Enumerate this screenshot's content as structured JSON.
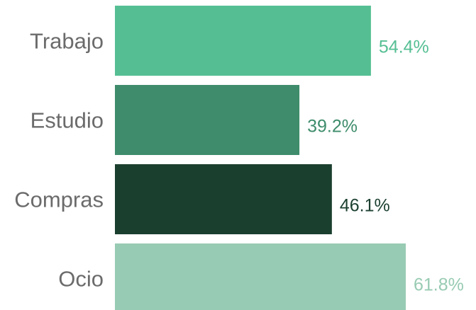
{
  "chart_data": {
    "type": "bar",
    "orientation": "horizontal",
    "categories": [
      "Trabajo",
      "Estudio",
      "Compras",
      "Ocio"
    ],
    "values": [
      54.4,
      39.2,
      46.1,
      61.8
    ],
    "value_labels": [
      "54.4%",
      "39.2%",
      "46.1%",
      "61.8%"
    ],
    "colors": [
      "#55bf93",
      "#3e8c6b",
      "#1b3f2f",
      "#98cbb3"
    ],
    "label_colors": [
      "#55bf93",
      "#3e8c6b",
      "#1b3f2f",
      "#98cbb3"
    ],
    "xlim": [
      0,
      61.8
    ],
    "unit": "%",
    "title": "",
    "xlabel": "",
    "ylabel": "",
    "grid": false,
    "legend": "none"
  }
}
